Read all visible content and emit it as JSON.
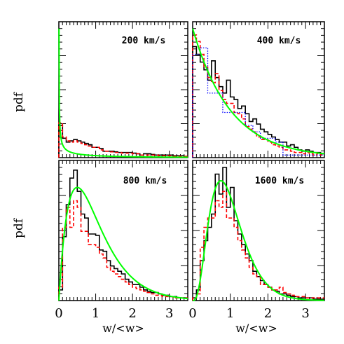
{
  "chart_data": [
    {
      "type": "line",
      "title": "200 km/s",
      "xlabel": "",
      "ylabel": "pdf",
      "xlim": [
        0,
        3.5
      ],
      "series": [
        {
          "style": "black-solid-step",
          "x": [
            0.0,
            0.1,
            0.2,
            0.3,
            0.4,
            0.5,
            0.6,
            0.7,
            0.8,
            0.9,
            1.0,
            1.1,
            1.2,
            1.3,
            1.4,
            1.5,
            1.6,
            1.7,
            1.8,
            1.9,
            2.0,
            2.1,
            2.2,
            2.3,
            2.4,
            2.5,
            2.6,
            2.7,
            2.8,
            2.9,
            3.0,
            3.1,
            3.2,
            3.3,
            3.4
          ],
          "y": [
            0.25,
            0.15,
            0.12,
            0.13,
            0.14,
            0.13,
            0.12,
            0.11,
            0.1,
            0.08,
            0.08,
            0.07,
            0.05,
            0.05,
            0.05,
            0.045,
            0.04,
            0.04,
            0.04,
            0.04,
            0.035,
            0.03,
            0.02,
            0.03,
            0.03,
            0.025,
            0.02,
            0.02,
            0.02,
            0.02,
            0.02,
            0.015,
            0.015,
            0.015,
            0.01
          ]
        },
        {
          "style": "red-dashed-step",
          "x": [
            0.0,
            0.1,
            0.2,
            0.3,
            0.4,
            0.5,
            0.6,
            0.7,
            0.8,
            0.9,
            1.0,
            1.1,
            1.2,
            1.3,
            1.4,
            1.5,
            1.6,
            1.7,
            1.8,
            1.9,
            2.0,
            2.1,
            2.2,
            2.3,
            2.4,
            2.5,
            2.6,
            2.7,
            2.8,
            2.9,
            3.0,
            3.1,
            3.2,
            3.3,
            3.4
          ],
          "y": [
            0.27,
            0.16,
            0.13,
            0.12,
            0.13,
            0.12,
            0.11,
            0.1,
            0.09,
            0.08,
            0.08,
            0.06,
            0.05,
            0.05,
            0.045,
            0.04,
            0.04,
            0.035,
            0.035,
            0.035,
            0.03,
            0.03,
            0.02,
            0.02,
            0.02,
            0.02,
            0.02,
            0.015,
            0.015,
            0.015,
            0.015,
            0.01,
            0.01,
            0.01,
            0.01
          ]
        },
        {
          "style": "green-model",
          "shape_k": 0.3,
          "x": [
            0.01,
            0.05,
            0.1,
            0.2,
            0.3,
            0.4,
            0.5,
            0.7,
            1.0,
            1.5,
            2.0,
            2.5,
            3.0,
            3.5
          ],
          "y": [
            1.0,
            0.44,
            0.3,
            0.19,
            0.145,
            0.115,
            0.095,
            0.07,
            0.05,
            0.03,
            0.02,
            0.013,
            0.009,
            0.007
          ]
        }
      ]
    },
    {
      "type": "line",
      "title": "400 km/s",
      "xlabel": "",
      "ylabel": "",
      "xlim": [
        0,
        3.5
      ],
      "series": [
        {
          "style": "black-solid-step",
          "x": [
            0.0,
            0.1,
            0.2,
            0.3,
            0.4,
            0.5,
            0.6,
            0.7,
            0.8,
            0.9,
            1.0,
            1.1,
            1.2,
            1.3,
            1.4,
            1.5,
            1.6,
            1.7,
            1.8,
            1.9,
            2.0,
            2.1,
            2.2,
            2.3,
            2.4,
            2.5,
            2.6,
            2.7,
            2.8,
            2.9,
            3.0,
            3.1,
            3.2,
            3.3,
            3.4
          ],
          "y": [
            0.86,
            0.8,
            0.74,
            0.68,
            0.6,
            0.75,
            0.62,
            0.55,
            0.5,
            0.6,
            0.47,
            0.45,
            0.38,
            0.4,
            0.34,
            0.28,
            0.3,
            0.26,
            0.22,
            0.2,
            0.18,
            0.16,
            0.14,
            0.12,
            0.12,
            0.09,
            0.1,
            0.08,
            0.06,
            0.05,
            0.06,
            0.05,
            0.04,
            0.04,
            0.03
          ]
        },
        {
          "style": "red-dashed-step",
          "x": [
            0.0,
            0.1,
            0.2,
            0.3,
            0.4,
            0.5,
            0.6,
            0.7,
            0.8,
            0.9,
            1.0,
            1.1,
            1.2,
            1.3,
            1.4,
            1.5,
            1.6,
            1.7,
            1.8,
            1.9,
            2.0,
            2.1,
            2.2,
            2.3,
            2.4,
            2.5,
            2.6,
            2.7,
            2.8,
            2.9,
            3.0,
            3.1,
            3.2,
            3.3,
            3.4
          ],
          "y": [
            0.95,
            0.9,
            0.8,
            0.7,
            0.62,
            0.58,
            0.65,
            0.52,
            0.45,
            0.42,
            0.42,
            0.35,
            0.34,
            0.3,
            0.24,
            0.22,
            0.2,
            0.16,
            0.14,
            0.14,
            0.12,
            0.1,
            0.09,
            0.08,
            0.06,
            0.06,
            0.05,
            0.04,
            0.04,
            0.03,
            0.04,
            0.03,
            0.02,
            0.03,
            0.02
          ]
        },
        {
          "style": "blue-dotted-step",
          "x": [
            0.0,
            0.2,
            0.4,
            0.6,
            0.8,
            1.0,
            1.2,
            1.4,
            1.6,
            1.8,
            2.0,
            2.2,
            2.4,
            2.6,
            2.8,
            3.0,
            3.2,
            3.4
          ],
          "y": [
            0.8,
            0.85,
            0.5,
            0.5,
            0.35,
            0.35,
            0.35,
            0.25,
            0.2,
            0.15,
            0.15,
            0.12,
            0.02,
            0.02,
            0.02,
            0.02,
            0.02,
            0.02
          ]
        },
        {
          "style": "green-model",
          "shape_k": 1.0,
          "x": [
            0.0,
            0.25,
            0.5,
            0.75,
            1.0,
            1.5,
            2.0,
            2.5,
            3.0,
            3.5
          ],
          "y": [
            1.0,
            0.78,
            0.61,
            0.47,
            0.37,
            0.22,
            0.135,
            0.082,
            0.05,
            0.03
          ]
        }
      ]
    },
    {
      "type": "line",
      "title": "800 km/s",
      "xlabel": "w/<w>",
      "ylabel": "pdf",
      "xlim": [
        0,
        3.5
      ],
      "xticks": [
        "0",
        "1",
        "2",
        "3"
      ],
      "series": [
        {
          "style": "black-solid-step",
          "x": [
            0.0,
            0.1,
            0.2,
            0.3,
            0.4,
            0.5,
            0.6,
            0.7,
            0.8,
            0.9,
            1.0,
            1.1,
            1.2,
            1.3,
            1.4,
            1.5,
            1.6,
            1.7,
            1.8,
            1.9,
            2.0,
            2.1,
            2.2,
            2.3,
            2.4,
            2.5,
            2.6,
            2.7,
            2.8,
            2.9,
            3.0,
            3.1,
            3.2,
            3.3,
            3.4
          ],
          "y": [
            0.08,
            0.48,
            0.72,
            0.92,
            0.98,
            0.82,
            0.65,
            0.62,
            0.5,
            0.5,
            0.49,
            0.38,
            0.37,
            0.3,
            0.26,
            0.24,
            0.22,
            0.2,
            0.16,
            0.14,
            0.12,
            0.12,
            0.1,
            0.08,
            0.07,
            0.06,
            0.06,
            0.05,
            0.04,
            0.04,
            0.03,
            0.03,
            0.02,
            0.02,
            0.02
          ]
        },
        {
          "style": "red-dashed-step",
          "x": [
            0.0,
            0.1,
            0.2,
            0.3,
            0.4,
            0.5,
            0.6,
            0.7,
            0.8,
            0.9,
            1.0,
            1.1,
            1.2,
            1.3,
            1.4,
            1.5,
            1.6,
            1.7,
            1.8,
            1.9,
            2.0,
            2.1,
            2.2,
            2.3,
            2.4,
            2.5,
            2.6,
            2.7,
            2.8,
            2.9,
            3.0,
            3.1,
            3.2,
            3.3,
            3.4
          ],
          "y": [
            0.1,
            0.55,
            0.7,
            0.55,
            0.75,
            0.7,
            0.52,
            0.52,
            0.42,
            0.42,
            0.4,
            0.35,
            0.32,
            0.25,
            0.22,
            0.2,
            0.18,
            0.16,
            0.14,
            0.12,
            0.1,
            0.09,
            0.08,
            0.07,
            0.06,
            0.05,
            0.04,
            0.04,
            0.03,
            0.03,
            0.03,
            0.02,
            0.02,
            0.02,
            0.02
          ]
        },
        {
          "style": "green-model",
          "shape_k": 2.0,
          "x": [
            0.0,
            0.2,
            0.4,
            0.5,
            0.7,
            1.0,
            1.5,
            2.0,
            2.5,
            3.0,
            3.5
          ],
          "y": [
            0.0,
            0.55,
            0.82,
            0.85,
            0.81,
            0.68,
            0.45,
            0.27,
            0.16,
            0.09,
            0.05
          ]
        }
      ]
    },
    {
      "type": "line",
      "title": "1600 km/s",
      "xlabel": "w/<w>",
      "ylabel": "",
      "xlim": [
        0,
        3.5
      ],
      "xticks": [
        "0",
        "1",
        "2",
        "3"
      ],
      "series": [
        {
          "style": "black-solid-step",
          "x": [
            0.0,
            0.1,
            0.2,
            0.3,
            0.4,
            0.5,
            0.6,
            0.7,
            0.8,
            0.9,
            1.0,
            1.1,
            1.2,
            1.3,
            1.4,
            1.5,
            1.6,
            1.7,
            1.8,
            1.9,
            2.0,
            2.1,
            2.2,
            2.3,
            2.4,
            2.5,
            2.6,
            2.7,
            2.8,
            2.9,
            3.0,
            3.1,
            3.2,
            3.3,
            3.4
          ],
          "y": [
            0.02,
            0.08,
            0.3,
            0.45,
            0.55,
            0.65,
            0.95,
            0.8,
            1.0,
            0.7,
            0.85,
            0.6,
            0.5,
            0.42,
            0.35,
            0.3,
            0.22,
            0.18,
            0.15,
            0.12,
            0.1,
            0.08,
            0.07,
            0.05,
            0.05,
            0.04,
            0.03,
            0.03,
            0.02,
            0.02,
            0.02,
            0.02,
            0.01,
            0.01,
            0.01
          ]
        },
        {
          "style": "red-dashed-step",
          "x": [
            0.0,
            0.1,
            0.2,
            0.3,
            0.4,
            0.5,
            0.6,
            0.7,
            0.8,
            0.9,
            1.0,
            1.1,
            1.2,
            1.3,
            1.4,
            1.5,
            1.6,
            1.7,
            1.8,
            1.9,
            2.0,
            2.1,
            2.2,
            2.3,
            2.4,
            2.5,
            2.6,
            2.7,
            2.8,
            2.9,
            3.0,
            3.1,
            3.2,
            3.3,
            3.4
          ],
          "y": [
            0.02,
            0.05,
            0.4,
            0.55,
            0.62,
            0.62,
            0.75,
            0.7,
            0.82,
            0.62,
            0.62,
            0.55,
            0.45,
            0.38,
            0.32,
            0.25,
            0.2,
            0.18,
            0.12,
            0.12,
            0.1,
            0.08,
            0.08,
            0.1,
            0.06,
            0.05,
            0.04,
            0.03,
            0.03,
            0.03,
            0.02,
            0.02,
            0.02,
            0.02,
            0.02
          ]
        },
        {
          "style": "green-model",
          "shape_k": 4.0,
          "x": [
            0.0,
            0.2,
            0.4,
            0.6,
            0.8,
            1.0,
            1.2,
            1.5,
            2.0,
            2.5,
            3.0,
            3.5
          ],
          "y": [
            0.0,
            0.08,
            0.45,
            0.8,
            0.9,
            0.82,
            0.66,
            0.42,
            0.16,
            0.05,
            0.015,
            0.004
          ]
        }
      ]
    }
  ],
  "colors": {
    "data_solid": "#000000",
    "data_dashed": "#ff0000",
    "data_dotted": "#0000ff",
    "model_curve": "#00ff00"
  }
}
